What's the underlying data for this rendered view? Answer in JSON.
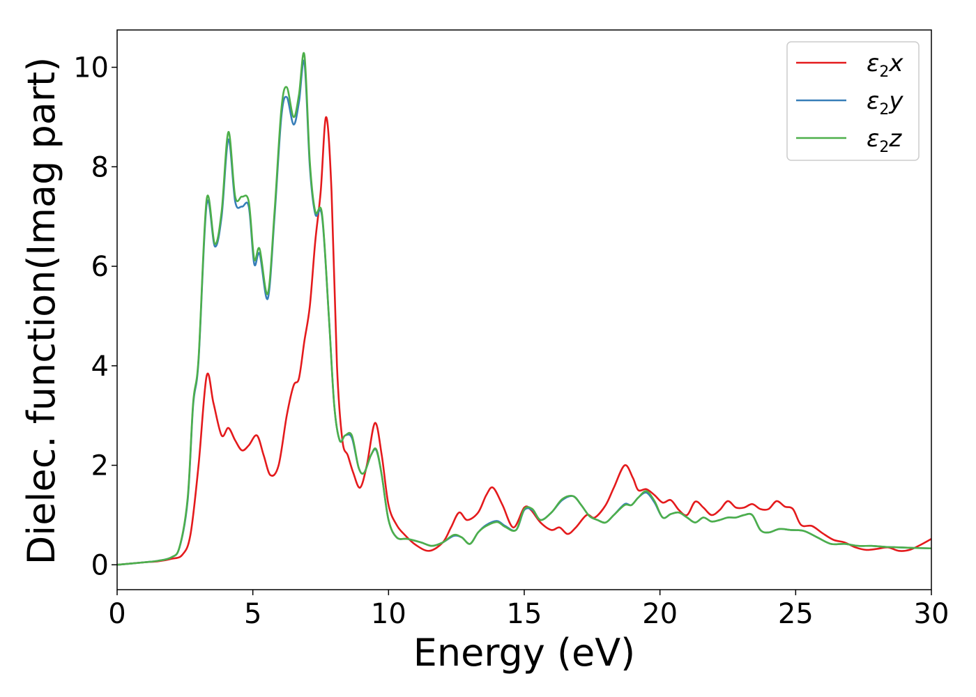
{
  "chart_data": {
    "type": "line",
    "title": "",
    "xlabel": "Energy (eV)",
    "ylabel": "Dielec. function(Imag part)",
    "xlim": [
      0,
      30
    ],
    "ylim": [
      -0.5,
      10.75
    ],
    "xticks": [
      0,
      5,
      10,
      15,
      20,
      25,
      30
    ],
    "xtick_labels": [
      "0",
      "5",
      "10",
      "15",
      "20",
      "25",
      "30"
    ],
    "yticks": [
      0,
      2,
      4,
      6,
      8,
      10
    ],
    "ytick_labels": [
      "0",
      "2",
      "4",
      "6",
      "8",
      "10"
    ],
    "grid": false,
    "legend_position": "top-right",
    "series": [
      {
        "name": "ε2x",
        "legend_base": "ε",
        "legend_sub": "2",
        "legend_suffix": "x",
        "color": "#e41a1c",
        "x": [
          0,
          1,
          1.5,
          2,
          2.4,
          2.7,
          3.0,
          3.3,
          3.55,
          3.85,
          4.1,
          4.35,
          4.6,
          4.85,
          5.15,
          5.4,
          5.65,
          5.95,
          6.25,
          6.5,
          6.7,
          6.9,
          7.1,
          7.3,
          7.5,
          7.7,
          7.9,
          8.1,
          8.3,
          8.5,
          8.7,
          8.95,
          9.2,
          9.5,
          9.75,
          10.0,
          10.3,
          10.6,
          11.0,
          11.5,
          12.0,
          12.3,
          12.6,
          12.9,
          13.3,
          13.6,
          13.85,
          14.2,
          14.6,
          15.0,
          15.25,
          15.6,
          16.0,
          16.3,
          16.6,
          16.9,
          17.3,
          17.6,
          18.0,
          18.3,
          18.7,
          19.0,
          19.2,
          19.5,
          19.8,
          20.1,
          20.4,
          20.7,
          21.0,
          21.3,
          21.6,
          21.9,
          22.2,
          22.5,
          22.8,
          23.1,
          23.4,
          23.7,
          24.0,
          24.3,
          24.6,
          24.9,
          25.2,
          25.6,
          26.0,
          26.4,
          26.8,
          27.2,
          27.6,
          28.0,
          28.4,
          28.8,
          29.2,
          29.6,
          30.0
        ],
        "y": [
          0,
          0.05,
          0.07,
          0.12,
          0.2,
          0.6,
          2.0,
          3.8,
          3.25,
          2.6,
          2.75,
          2.5,
          2.3,
          2.4,
          2.6,
          2.2,
          1.8,
          2.0,
          3.0,
          3.6,
          3.75,
          4.5,
          5.2,
          6.5,
          7.5,
          9.0,
          7.5,
          4.0,
          2.5,
          2.2,
          1.85,
          1.55,
          2.0,
          2.85,
          2.2,
          1.2,
          0.8,
          0.6,
          0.4,
          0.28,
          0.45,
          0.75,
          1.05,
          0.9,
          1.05,
          1.4,
          1.55,
          1.2,
          0.75,
          1.15,
          1.1,
          0.85,
          0.7,
          0.75,
          0.62,
          0.75,
          1.0,
          0.95,
          1.2,
          1.55,
          2.0,
          1.75,
          1.5,
          1.52,
          1.4,
          1.25,
          1.3,
          1.1,
          1.0,
          1.27,
          1.15,
          1.0,
          1.1,
          1.28,
          1.15,
          1.15,
          1.22,
          1.12,
          1.12,
          1.28,
          1.17,
          1.12,
          0.8,
          0.78,
          0.63,
          0.5,
          0.45,
          0.35,
          0.3,
          0.32,
          0.35,
          0.28,
          0.3,
          0.4,
          0.52
        ]
      },
      {
        "name": "ε2y",
        "legend_base": "ε",
        "legend_sub": "2",
        "legend_suffix": "y",
        "color": "#377eb8",
        "x": [
          0,
          1,
          1.5,
          2,
          2.3,
          2.6,
          2.8,
          3.0,
          3.3,
          3.6,
          3.85,
          4.1,
          4.35,
          4.6,
          4.85,
          5.05,
          5.25,
          5.55,
          5.8,
          6.05,
          6.25,
          6.5,
          6.7,
          6.9,
          7.1,
          7.3,
          7.55,
          7.8,
          8.0,
          8.2,
          8.4,
          8.65,
          8.9,
          9.1,
          9.35,
          9.55,
          9.75,
          10.0,
          10.3,
          10.7,
          11.2,
          11.6,
          12.0,
          12.4,
          12.7,
          13.0,
          13.3,
          13.6,
          14.0,
          14.3,
          14.7,
          15.0,
          15.3,
          15.6,
          16.0,
          16.4,
          16.8,
          17.1,
          17.4,
          17.7,
          18.0,
          18.3,
          18.7,
          18.95,
          19.2,
          19.5,
          19.8,
          20.1,
          20.4,
          20.7,
          21.0,
          21.3,
          21.6,
          21.9,
          22.2,
          22.5,
          22.8,
          23.1,
          23.4,
          23.7,
          24.0,
          24.4,
          24.8,
          25.3,
          25.8,
          26.3,
          26.8,
          27.3,
          27.8,
          28.3,
          28.8,
          29.3,
          30.0
        ],
        "y": [
          0,
          0.05,
          0.08,
          0.15,
          0.35,
          1.3,
          3.2,
          4.1,
          7.25,
          6.4,
          7.0,
          8.55,
          7.3,
          7.2,
          7.2,
          6.05,
          6.25,
          5.35,
          7.0,
          9.0,
          9.4,
          8.85,
          9.3,
          10.1,
          8.0,
          7.05,
          7.0,
          5.0,
          3.2,
          2.5,
          2.6,
          2.55,
          1.95,
          1.85,
          2.2,
          2.3,
          1.8,
          0.9,
          0.55,
          0.52,
          0.45,
          0.38,
          0.45,
          0.58,
          0.55,
          0.42,
          0.65,
          0.8,
          0.88,
          0.78,
          0.7,
          1.1,
          1.1,
          0.9,
          1.05,
          1.3,
          1.38,
          1.2,
          0.98,
          0.9,
          0.85,
          1.0,
          1.22,
          1.2,
          1.35,
          1.45,
          1.25,
          0.95,
          1.02,
          1.05,
          0.95,
          0.85,
          0.95,
          0.87,
          0.9,
          0.95,
          0.95,
          1.0,
          1.0,
          0.7,
          0.65,
          0.72,
          0.7,
          0.68,
          0.55,
          0.42,
          0.42,
          0.38,
          0.38,
          0.36,
          0.35,
          0.34,
          0.33
        ]
      },
      {
        "name": "ε2z",
        "legend_base": "ε",
        "legend_sub": "2",
        "legend_suffix": "z",
        "color": "#4daf4a",
        "x": [
          0,
          1,
          1.5,
          2,
          2.3,
          2.6,
          2.8,
          3.0,
          3.3,
          3.6,
          3.85,
          4.1,
          4.35,
          4.6,
          4.85,
          5.05,
          5.25,
          5.55,
          5.8,
          6.05,
          6.25,
          6.5,
          6.7,
          6.9,
          7.1,
          7.3,
          7.55,
          7.8,
          8.0,
          8.2,
          8.4,
          8.65,
          8.9,
          9.1,
          9.35,
          9.55,
          9.75,
          10.0,
          10.3,
          10.7,
          11.2,
          11.6,
          12.0,
          12.4,
          12.7,
          13.0,
          13.3,
          13.6,
          14.0,
          14.3,
          14.7,
          15.0,
          15.3,
          15.6,
          16.0,
          16.4,
          16.8,
          17.1,
          17.4,
          17.7,
          18.0,
          18.3,
          18.7,
          18.95,
          19.2,
          19.5,
          19.8,
          20.1,
          20.4,
          20.7,
          21.0,
          21.3,
          21.6,
          21.9,
          22.2,
          22.5,
          22.8,
          23.1,
          23.4,
          23.7,
          24.0,
          24.4,
          24.8,
          25.3,
          25.8,
          26.3,
          26.8,
          27.3,
          27.8,
          28.3,
          28.8,
          29.3,
          30.0
        ],
        "y": [
          0,
          0.05,
          0.08,
          0.15,
          0.36,
          1.35,
          3.25,
          4.15,
          7.35,
          6.45,
          7.1,
          8.7,
          7.4,
          7.4,
          7.3,
          6.15,
          6.35,
          5.45,
          7.1,
          9.15,
          9.6,
          9.0,
          9.45,
          10.25,
          8.1,
          7.1,
          7.05,
          5.0,
          3.2,
          2.5,
          2.6,
          2.6,
          1.95,
          1.85,
          2.2,
          2.32,
          1.8,
          0.9,
          0.55,
          0.52,
          0.45,
          0.38,
          0.45,
          0.6,
          0.55,
          0.42,
          0.65,
          0.78,
          0.86,
          0.76,
          0.7,
          1.12,
          1.12,
          0.9,
          1.05,
          1.32,
          1.38,
          1.2,
          0.98,
          0.9,
          0.85,
          1.0,
          1.2,
          1.2,
          1.35,
          1.48,
          1.28,
          0.95,
          1.02,
          1.05,
          0.95,
          0.85,
          0.95,
          0.87,
          0.9,
          0.95,
          0.95,
          1.0,
          1.0,
          0.7,
          0.65,
          0.72,
          0.7,
          0.68,
          0.55,
          0.42,
          0.42,
          0.38,
          0.38,
          0.36,
          0.35,
          0.34,
          0.33
        ]
      }
    ]
  }
}
